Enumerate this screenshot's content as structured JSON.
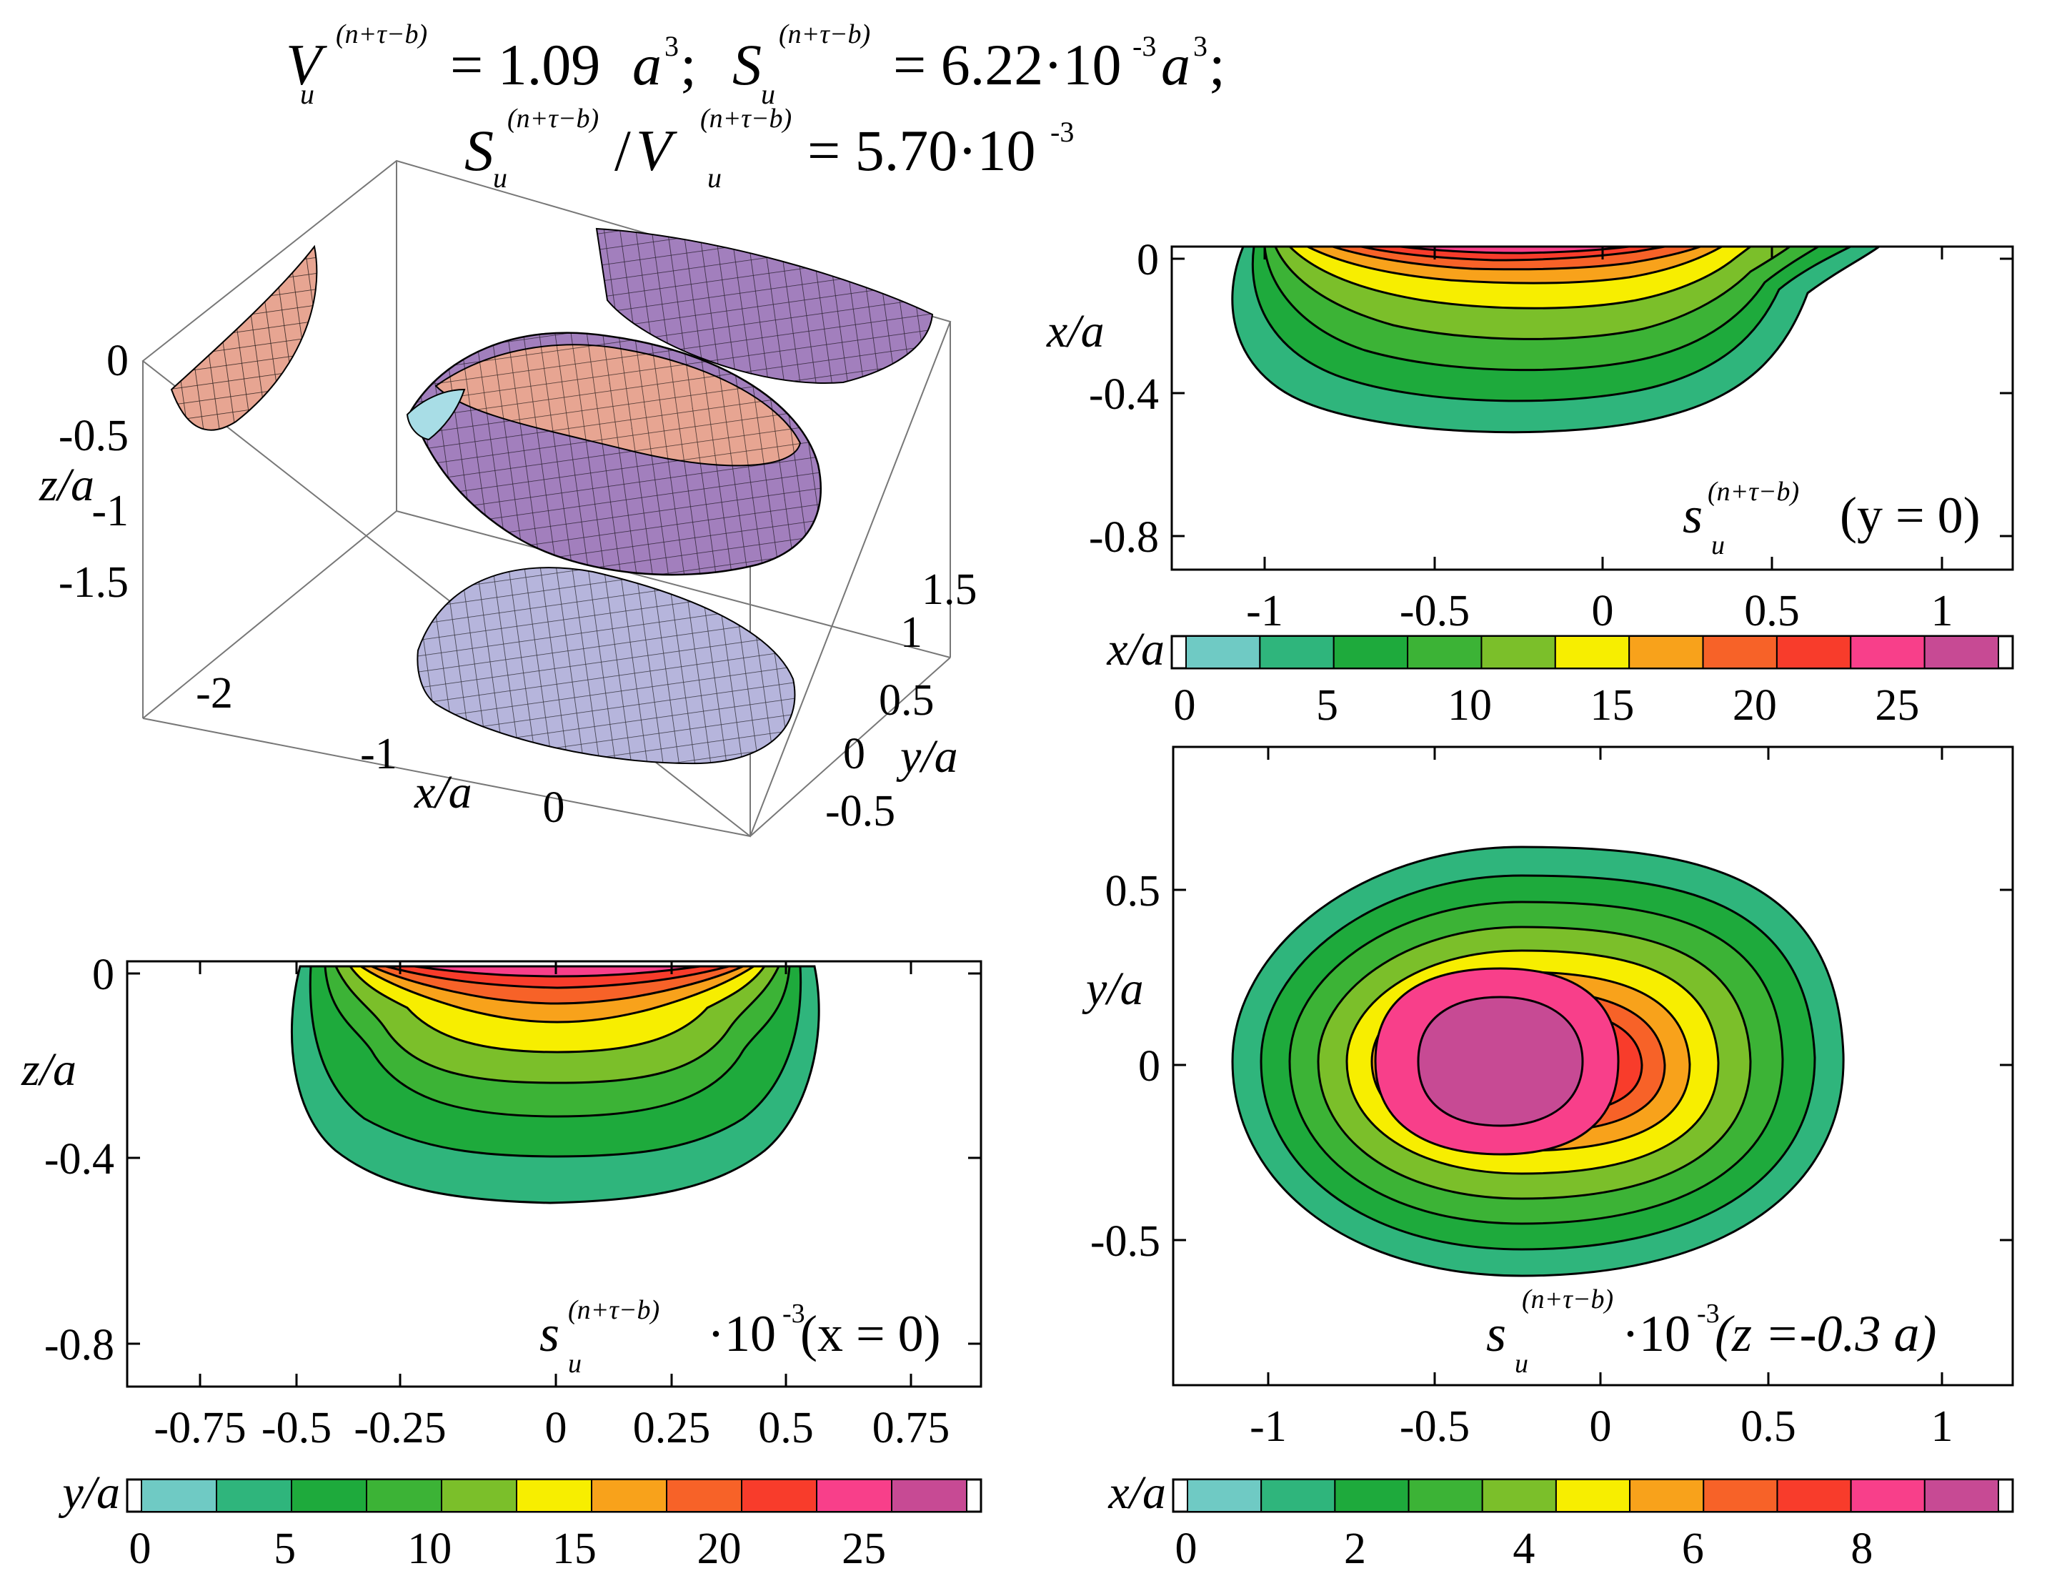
{
  "header": {
    "line1": {
      "V_sym": "V",
      "sub_u": "u",
      "sup": "(n+τ−b)",
      "V_value": "= 1.09",
      "a3": "a",
      "cube": "3",
      "sep": ";",
      "S_sym": "S",
      "S_value": "= 6.22·10",
      "exp": "-3",
      "a3_2": "a",
      "cube2": "3",
      "sep2": ";"
    },
    "line2": {
      "S_sym": "S",
      "sub_u": "u",
      "sup": "(n+τ−b)",
      "slash": "/",
      "V_sym": "V",
      "sub_u2": "u",
      "sup2": "(n+τ−b)",
      "ratio_value": "= 5.70·10",
      "exp": "-3"
    }
  },
  "colors": {
    "levels": [
      "#6fcac4",
      "#2fb57c",
      "#1eaa3c",
      "#3cb336",
      "#7bbf2a",
      "#f7ee00",
      "#f8a21b",
      "#f76228",
      "#f83c2b",
      "#f83f8a",
      "#c74a94"
    ],
    "frame": "#000000",
    "surface_salmon": "#e7a592",
    "surface_purple": "#a27fbd",
    "surface_lavender": "#b6b5dc",
    "surface_cyan": "#a8dde6"
  },
  "chart_data": [
    {
      "type": "surface3d",
      "panel": "iso-surface",
      "axes": {
        "z": {
          "label": "z/a",
          "ticks": [
            "0",
            "-0.5",
            "-1",
            "-1.5"
          ]
        },
        "x": {
          "label": "x/a",
          "ticks": [
            "-2",
            "-1",
            "0"
          ]
        },
        "y": {
          "label": "y/a",
          "ticks": [
            "1.5",
            "1",
            "0.5",
            "0",
            "-0.5"
          ]
        }
      }
    },
    {
      "type": "heatmap",
      "panel": "contour-y0",
      "label_sym": "s",
      "label_sub": "u",
      "label_sup": "(n+τ−b)",
      "label_cond": "(y = 0)",
      "xlabel": "x/a",
      "ylabel": "x/a",
      "xticks": [
        "-1",
        "-0.5",
        "0",
        "0.5",
        "1"
      ],
      "yticks": [
        "0",
        "-0.4",
        "-0.8"
      ],
      "xlim": [
        -1.3,
        1.2
      ],
      "ylim": [
        -0.95,
        0
      ],
      "colorbar": {
        "label": "x/a",
        "ticks": [
          "0",
          "5",
          "10",
          "15",
          "20",
          "25"
        ]
      }
    },
    {
      "type": "heatmap",
      "panel": "contour-x0",
      "label_sym": "s",
      "label_sub": "u",
      "label_sup": "(n+τ−b)",
      "label_mult": "·10",
      "label_exp": "-3",
      "label_cond": "(x = 0)",
      "xlabel": "y/a",
      "ylabel": "z/a",
      "xticks": [
        "-0.75",
        "-0.5",
        "-0.25",
        "0",
        "0.25",
        "0.5",
        "0.75"
      ],
      "yticks": [
        "0",
        "-0.4",
        "-0.8"
      ],
      "xlim": [
        -0.8,
        0.8
      ],
      "ylim": [
        -0.95,
        0
      ],
      "colorbar": {
        "label": "y/a",
        "ticks": [
          "0",
          "5",
          "10",
          "15",
          "20",
          "25"
        ]
      }
    },
    {
      "type": "heatmap",
      "panel": "contour-z",
      "label_sym": "s",
      "label_sub": "u",
      "label_sup": "(n+τ−b)",
      "label_mult": "·10",
      "label_exp": "-3",
      "label_cond": "(z =-0.3 a)",
      "xlabel": "x/a",
      "ylabel": "y/a",
      "xticks": [
        "-1",
        "-0.5",
        "0",
        "0.5",
        "1"
      ],
      "yticks": [
        "0.5",
        "0",
        "-0.5"
      ],
      "xlim": [
        -1.3,
        1.2
      ],
      "ylim": [
        -0.9,
        0.9
      ],
      "colorbar": {
        "label": "x/a",
        "ticks": [
          "0",
          "2",
          "4",
          "6",
          "8"
        ]
      }
    }
  ]
}
